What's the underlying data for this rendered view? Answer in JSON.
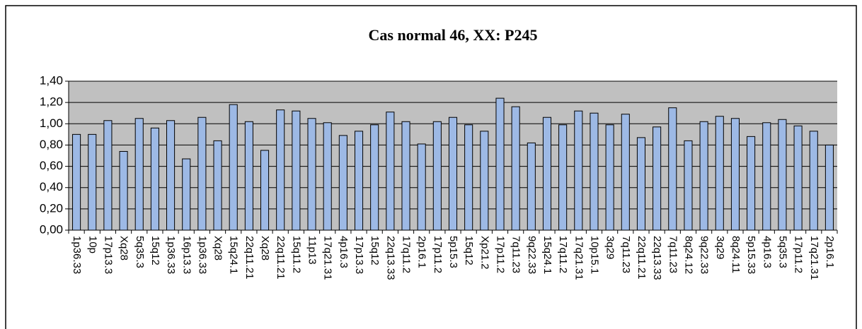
{
  "chart_data": {
    "type": "bar",
    "title": "Cas normal 46, XX: P245",
    "categories": [
      "1p36.33",
      "10p",
      "17p13.3",
      "Xq28",
      "5q35.3",
      "15q12",
      "1p36.33",
      "16p13.3",
      "1p36.33",
      "Xq28",
      "15q24.1",
      "22q11.21",
      "Xq28",
      "22q11.21",
      "15q11.2",
      "11p13",
      "17q21.31",
      "4p16.3",
      "17p13.3",
      "15q12",
      "22q13.33",
      "17q11.2",
      "2p16.1",
      "17p11.2",
      "5p15.3",
      "15q12",
      "Xp21.2",
      "17p11.2",
      "7q11.23",
      "9q22.33",
      "15q24.1",
      "17q11.2",
      "17q21.31",
      "10p15.1",
      "3q29",
      "7q11.23",
      "22q11.21",
      "22q13.33",
      "7q11.23",
      "8q24.12",
      "9q22.33",
      "3q29",
      "8q24.11",
      "5p15.33",
      "4p16.3",
      "5q35.3",
      "17p11.2",
      "17q21.31",
      "2p16.1"
    ],
    "values": [
      0.9,
      0.9,
      1.03,
      0.74,
      1.05,
      0.96,
      1.03,
      0.67,
      1.06,
      0.84,
      1.18,
      1.02,
      0.75,
      1.13,
      1.12,
      1.05,
      1.01,
      0.89,
      0.93,
      0.99,
      1.11,
      1.02,
      0.81,
      1.02,
      1.06,
      0.99,
      0.93,
      1.24,
      1.16,
      0.82,
      1.06,
      0.99,
      1.12,
      1.1,
      0.99,
      1.09,
      0.87,
      0.97,
      1.15,
      0.84,
      1.02,
      1.07,
      1.05,
      0.88,
      1.01,
      1.04,
      0.98,
      0.93,
      0.8
    ],
    "color": "#9db9e5",
    "ylim": [
      0,
      1.4
    ],
    "yticks": [
      {
        "value": 0,
        "label": "0,00"
      },
      {
        "value": 0.2,
        "label": "0,20"
      },
      {
        "value": 0.4,
        "label": "0,40"
      },
      {
        "value": 0.6,
        "label": "0,60"
      },
      {
        "value": 0.8,
        "label": "0,80"
      },
      {
        "value": 1.0,
        "label": "1,00"
      },
      {
        "value": 1.2,
        "label": "1,20"
      },
      {
        "value": 1.4,
        "label": "1,40"
      }
    ],
    "grid": true
  }
}
